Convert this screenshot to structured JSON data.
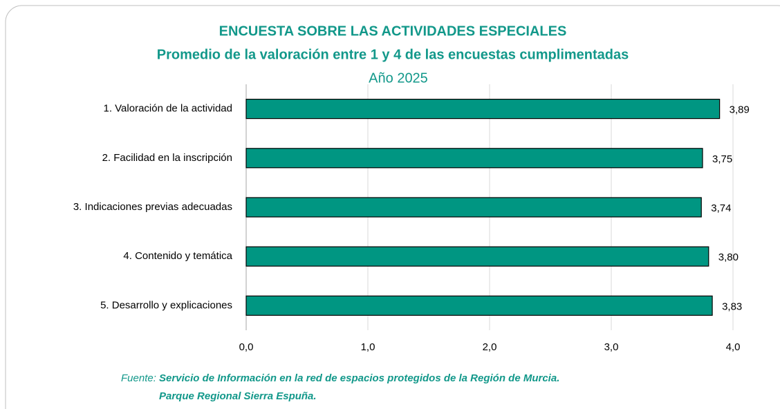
{
  "chart_data": {
    "type": "barh",
    "title": "ENCUESTA SOBRE LAS ACTIVIDADES ESPECIALES",
    "subtitle": "Promedio de la valoración entre 1 y 4 de las encuestas cumplimentadas",
    "year_label": "Año 2025",
    "categories": [
      "1. Valoración de la actividad",
      "2. Facilidad en la inscripción",
      "3. Indicaciones previas adecuadas",
      "4. Contenido y temática",
      "5. Desarrollo y explicaciones"
    ],
    "values": [
      3.89,
      3.75,
      3.74,
      3.8,
      3.83
    ],
    "value_labels": [
      "3,89",
      "3,75",
      "3,74",
      "3,80",
      "3,83"
    ],
    "color": "#009682",
    "xlim": [
      0,
      4
    ],
    "xticks": [
      {
        "value": 0,
        "label": "0,0"
      },
      {
        "value": 1,
        "label": "1,0"
      },
      {
        "value": 2,
        "label": "2,0"
      },
      {
        "value": 3,
        "label": "3,0"
      },
      {
        "value": 4,
        "label": "4,0"
      }
    ],
    "grid": true,
    "source_label": "Fuente:",
    "source": [
      "Servicio de Información en la red de espacios protegidos de la Región de Murcia.",
      "Parque Regional Sierra Espuña."
    ]
  }
}
